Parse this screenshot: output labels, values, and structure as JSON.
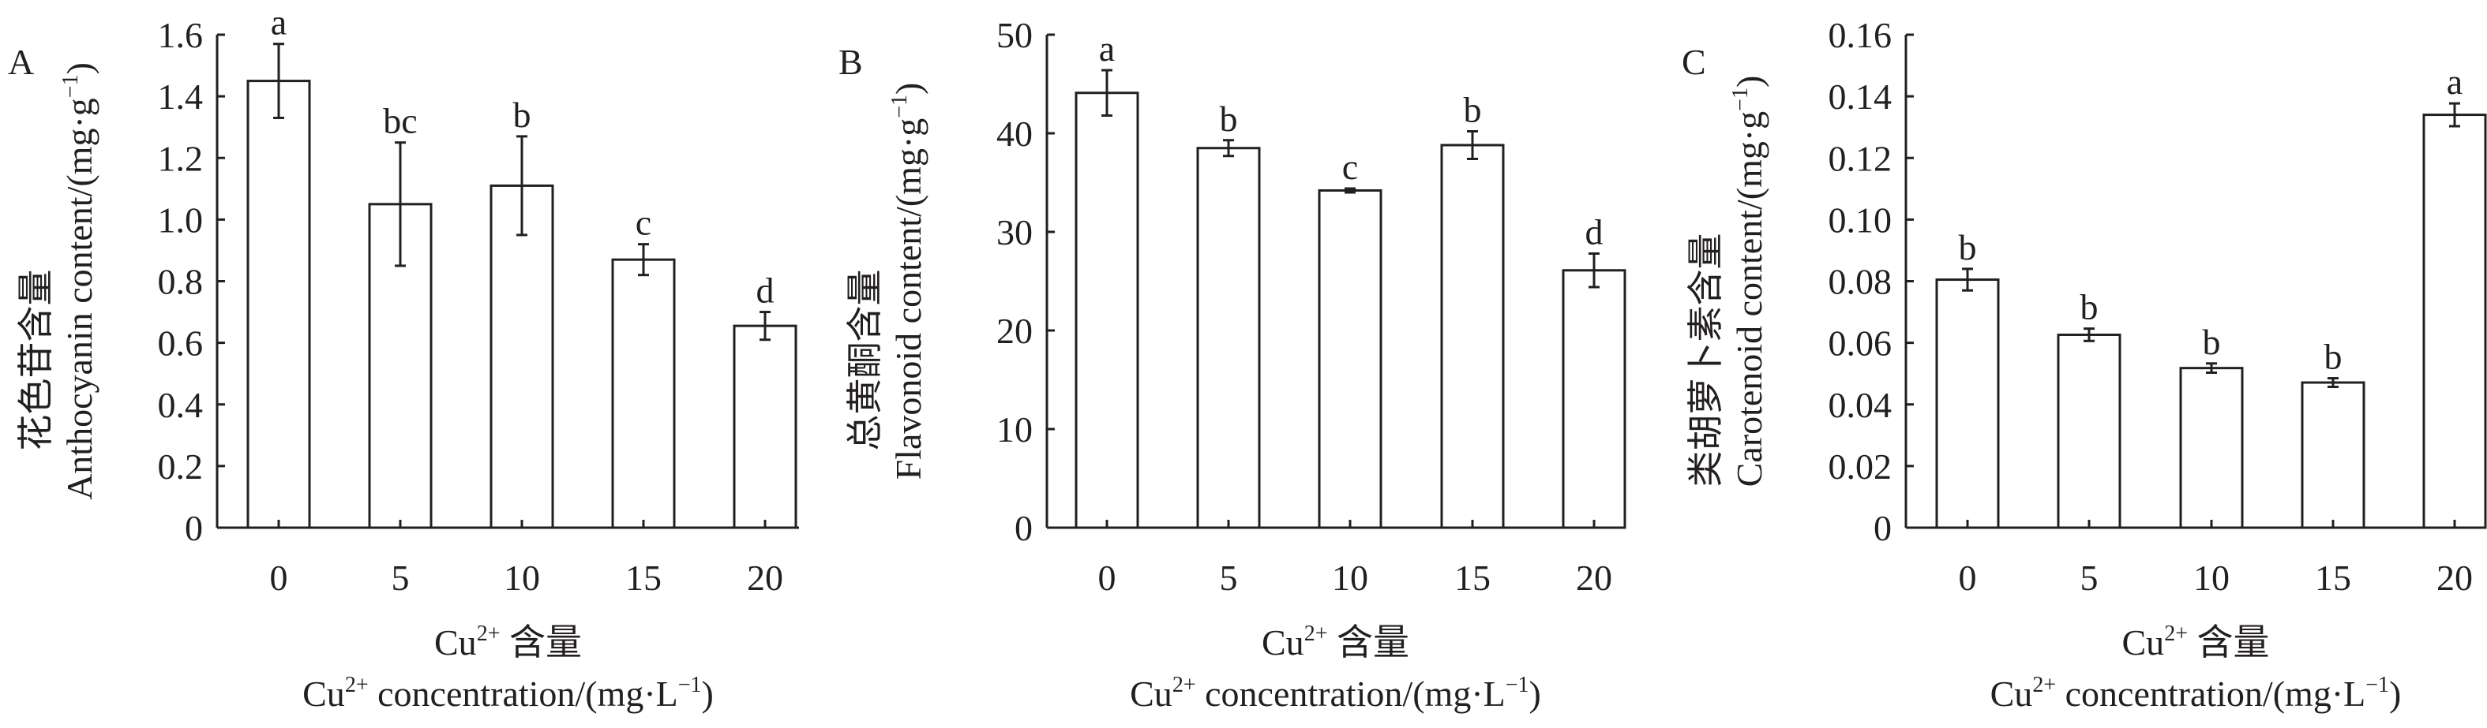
{
  "chart_data": [
    {
      "type": "bar",
      "panel": "A",
      "categories": [
        "0",
        "5",
        "10",
        "15",
        "20"
      ],
      "values": [
        1.45,
        1.05,
        1.11,
        0.87,
        0.655
      ],
      "errors": [
        0.12,
        0.2,
        0.16,
        0.05,
        0.045
      ],
      "letters": [
        "a",
        "bc",
        "b",
        "c",
        "d"
      ],
      "ylabel_cn": "花色苷含量",
      "ylabel_en": "Anthocyanin content/(mg·g",
      "ylabel_sup": "−1",
      "ylabel_close": ")",
      "ylim": [
        0,
        1.6
      ],
      "yticks": [
        "0",
        "0.2",
        "0.4",
        "0.6",
        "0.8",
        "1.0",
        "1.2",
        "1.4",
        "1.6"
      ],
      "xlabel_cn": [
        "Cu",
        "2+",
        " 含量"
      ],
      "xlabel_en": [
        "Cu",
        "2+",
        " concentration/(mg·L",
        "−1",
        ")"
      ]
    },
    {
      "type": "bar",
      "panel": "B",
      "categories": [
        "0",
        "5",
        "10",
        "15",
        "20"
      ],
      "values": [
        44.1,
        38.5,
        34.2,
        38.8,
        26.1
      ],
      "errors": [
        2.3,
        0.8,
        0.2,
        1.4,
        1.7
      ],
      "letters": [
        "a",
        "b",
        "c",
        "b",
        "d"
      ],
      "ylabel_cn": "总黄酮含量",
      "ylabel_en": "Flavonoid content/(mg·g",
      "ylabel_sup": "−1",
      "ylabel_close": ")",
      "ylim": [
        0,
        50
      ],
      "yticks": [
        "0",
        "10",
        "20",
        "30",
        "40",
        "50"
      ],
      "xlabel_cn": [
        "Cu",
        "2+",
        " 含量"
      ],
      "xlabel_en": [
        "Cu",
        "2+",
        " concentration/(mg·L",
        "−1",
        ")"
      ]
    },
    {
      "type": "bar",
      "panel": "C",
      "categories": [
        "0",
        "5",
        "10",
        "15",
        "20"
      ],
      "values": [
        0.0805,
        0.0626,
        0.0518,
        0.0471,
        0.134
      ],
      "errors": [
        0.0035,
        0.002,
        0.0015,
        0.0014,
        0.0037
      ],
      "letters": [
        "b",
        "b",
        "b",
        "b",
        "a"
      ],
      "ylabel_cn": "类胡萝卜素含量",
      "ylabel_en": "Carotenoid content/(mg·g",
      "ylabel_sup": "−1",
      "ylabel_close": ")",
      "ylim": [
        0,
        0.16
      ],
      "yticks": [
        "0",
        "0.02",
        "0.04",
        "0.06",
        "0.08",
        "0.10",
        "0.12",
        "0.14",
        "0.16"
      ],
      "xlabel_cn": [
        "Cu",
        "2+",
        " 含量"
      ],
      "xlabel_en": [
        "Cu",
        "2+",
        " concentration/(mg·L",
        "−1",
        ")"
      ]
    }
  ]
}
